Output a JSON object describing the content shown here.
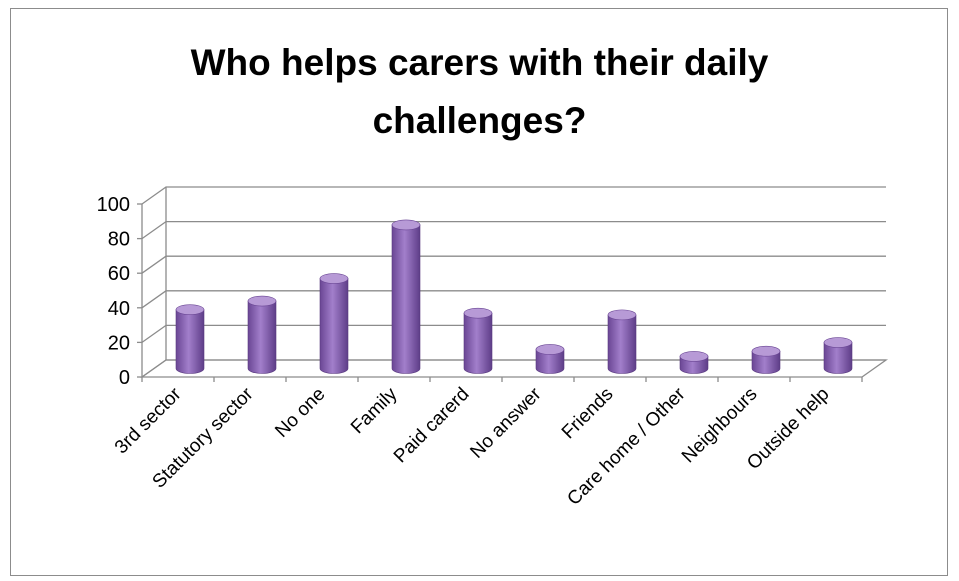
{
  "chart_data": {
    "type": "bar",
    "title_line1": "Who helps carers with their daily",
    "title_line2": "challenges?",
    "categories": [
      "3rd sector",
      "Statutory sector",
      "No one",
      "Family",
      "Paid carerd",
      "No answer",
      "Friends",
      "Care home / Other",
      "Neighbours",
      "Outside help"
    ],
    "values": [
      34,
      39,
      52,
      83,
      32,
      11,
      31,
      7,
      10,
      15
    ],
    "ylim": [
      0,
      100
    ],
    "yticks": [
      "0",
      "20",
      "40",
      "60",
      "80",
      "100"
    ],
    "grid": true,
    "legend": "none",
    "bar_color": "#8e64b8",
    "bar_color_dark": "#6a4694",
    "bar_color_light": "#b79ad6"
  }
}
